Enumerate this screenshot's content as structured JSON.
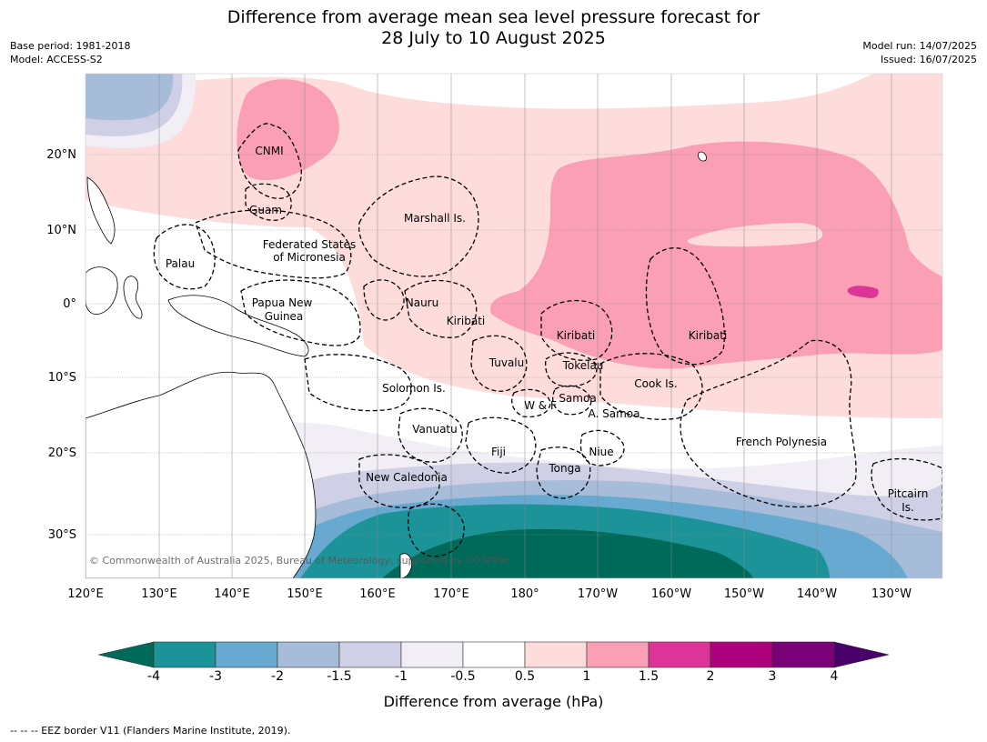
{
  "title_line1": "Difference from average mean sea level pressure forecast for",
  "title_line2": "28 July to 10 August 2025",
  "meta_left": [
    "Base period: 1981-2018",
    "Model: ACCESS-S2"
  ],
  "meta_right": [
    "Model run: 14/07/2025",
    "Issued: 16/07/2025"
  ],
  "lat_labels": [
    "20°N",
    "10°N",
    "0°",
    "10°S",
    "20°S",
    "30°S"
  ],
  "lon_labels": [
    "120°E",
    "130°E",
    "140°E",
    "150°E",
    "160°E",
    "170°E",
    "180°",
    "170°W",
    "160°W",
    "150°W",
    "140°W",
    "130°W"
  ],
  "place_labels": [
    {
      "text": "CNMI"
    },
    {
      "text": "Guam"
    },
    {
      "text": "Marshall Is."
    },
    {
      "text": "Federated States"
    },
    {
      "text": "of Micronesia"
    },
    {
      "text": "Palau"
    },
    {
      "text": "Papua New"
    },
    {
      "text": "Guinea"
    },
    {
      "text": "Nauru"
    },
    {
      "text": "Kiribati"
    },
    {
      "text": "Kiribati"
    },
    {
      "text": "Kiribati"
    },
    {
      "text": "Tuvalu"
    },
    {
      "text": "Tokelau"
    },
    {
      "text": "Solomon Is."
    },
    {
      "text": "Cook Is."
    },
    {
      "text": "Samoa"
    },
    {
      "text": "W & F"
    },
    {
      "text": "A. Samoa"
    },
    {
      "text": "Vanuatu"
    },
    {
      "text": "Fiji"
    },
    {
      "text": "Niue"
    },
    {
      "text": "French Polynesia"
    },
    {
      "text": "Tonga"
    },
    {
      "text": "New Caledonia"
    },
    {
      "text": "Pitcairn"
    },
    {
      "text": "Is."
    }
  ],
  "copyright": "© Commonwealth of Australia 2025, Bureau of Meteorology, supported by COSPPac",
  "colorbar": {
    "colors": [
      "#006a5a",
      "#1b9399",
      "#67a9d0",
      "#a6bcd9",
      "#cfcfe6",
      "#f1eef5",
      "#ffffff",
      "#fedcdb",
      "#fa9fb5",
      "#dd3497",
      "#ae017e",
      "#7a0177",
      "#49006a"
    ],
    "ticks": [
      "-4",
      "-3",
      "-2",
      "-1.5",
      "-1",
      "-0.5",
      "0.5",
      "1",
      "1.5",
      "2",
      "3",
      "4"
    ],
    "label": "Difference from average (hPa)"
  },
  "footer": "-- -- -- EEZ border V11 (Flanders Marine Institute, 2019)."
}
